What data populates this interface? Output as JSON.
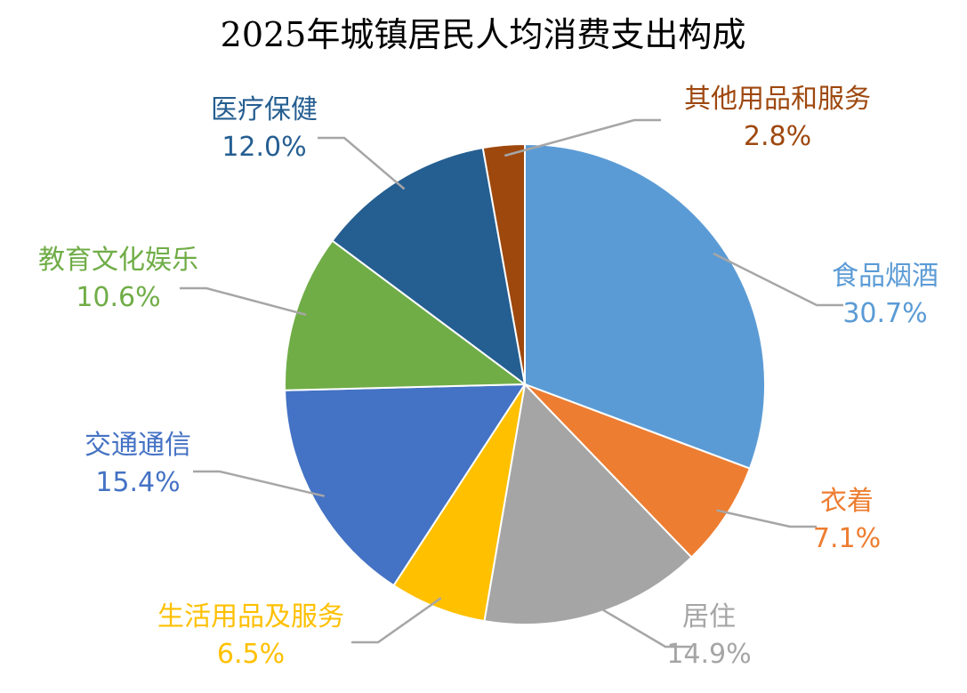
{
  "chart_data": {
    "type": "pie",
    "title": "2025年城镇居民人均消费支出构成",
    "unit": "%",
    "slices": [
      {
        "name": "食品烟酒",
        "value": 30.7,
        "label": "30.7%",
        "color": "#5b9bd5"
      },
      {
        "name": "衣着",
        "value": 7.1,
        "label": "7.1%",
        "color": "#ed7d31"
      },
      {
        "name": "居住",
        "value": 14.9,
        "label": "14.9%",
        "color": "#a5a5a5"
      },
      {
        "name": "生活用品及服务",
        "value": 6.5,
        "label": "6.5%",
        "color": "#ffc000"
      },
      {
        "name": "交通通信",
        "value": 15.4,
        "label": "15.4%",
        "color": "#4472c4"
      },
      {
        "name": "教育文化娱乐",
        "value": 10.6,
        "label": "10.6%",
        "color": "#70ad47"
      },
      {
        "name": "医疗保健",
        "value": 12.0,
        "label": "12.0%",
        "color": "#255e91"
      },
      {
        "name": "其他用品和服务",
        "value": 2.8,
        "label": "2.8%",
        "color": "#9e480e"
      }
    ],
    "start_angle": "12 o'clock",
    "direction": "clockwise",
    "legend": "none",
    "data_labels": "outside with leader lines"
  }
}
